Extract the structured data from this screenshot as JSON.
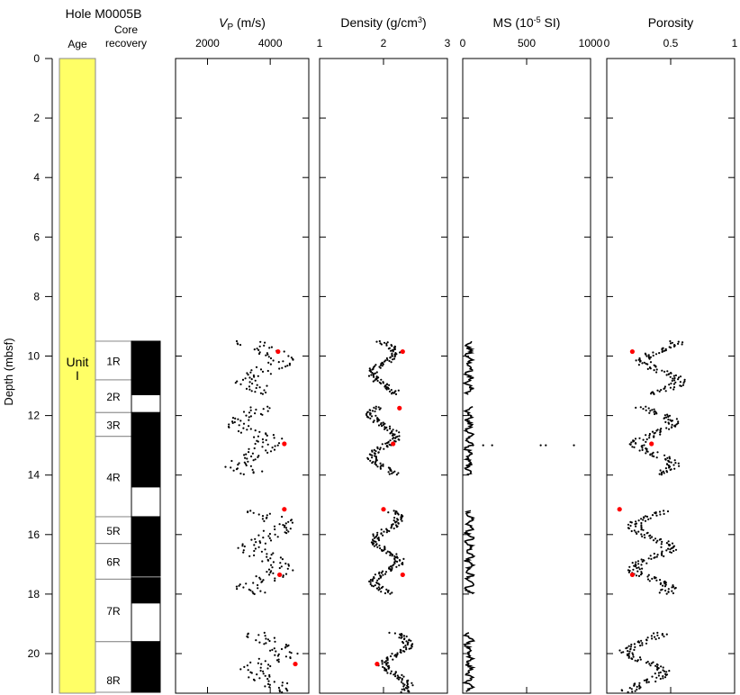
{
  "chart_data": {
    "type": "scatter",
    "title": "Hole M0005B",
    "ylabel": "Depth (mbsf)",
    "ylim": [
      0,
      21.3
    ],
    "depth_ticks": [
      0,
      2,
      4,
      6,
      8,
      10,
      12,
      14,
      16,
      18,
      20
    ],
    "columns": {
      "age": {
        "label": "Age",
        "unit_label": "Unit\nI",
        "unit_lines": [
          "Unit",
          "I"
        ],
        "top": 0,
        "bottom": 21.3,
        "color": "#ffff66"
      },
      "core_recovery": {
        "label_lines": [
          "Core",
          "recovery"
        ],
        "cores": [
          {
            "name": "1R",
            "top": 9.5,
            "bottom": 10.8,
            "recovered_top": 9.5,
            "recovered_bottom": 11.3
          },
          {
            "name": "2R",
            "top": 10.8,
            "bottom": 11.9,
            "recovered_top": 10.8,
            "recovered_bottom": 11.3
          },
          {
            "name": "3R",
            "top": 11.9,
            "bottom": 12.7,
            "recovered_top": 11.9,
            "recovered_bottom": 14.4
          },
          {
            "name": "4R",
            "top": 12.7,
            "bottom": 15.4,
            "recovered_top": 12.7,
            "recovered_bottom": 14.4
          },
          {
            "name": "5R",
            "top": 15.4,
            "bottom": 16.3,
            "recovered_top": 15.4,
            "recovered_bottom": 17.4
          },
          {
            "name": "6R",
            "top": 16.3,
            "bottom": 17.5,
            "recovered_top": 16.3,
            "recovered_bottom": 17.4
          },
          {
            "name": "7R",
            "top": 17.5,
            "bottom": 19.6,
            "recovered_top": 17.5,
            "recovered_bottom": 18.3
          },
          {
            "name": "8R",
            "top": 19.6,
            "bottom": 21.3,
            "recovered_top": 19.6,
            "recovered_bottom": 21.3
          }
        ]
      }
    },
    "panels": [
      {
        "id": "vp",
        "title_main": "V",
        "title_sub": "P",
        "title_rest": " (m/s)",
        "xlim": [
          980,
          5230
        ],
        "ticks": [
          2000,
          4000
        ],
        "tick_labels": [
          "2000",
          "4000"
        ],
        "style": "points",
        "intervals": [
          [
            9.5,
            11.3
          ],
          [
            11.7,
            14.0
          ],
          [
            15.2,
            18.0
          ],
          [
            19.3,
            21.3
          ]
        ],
        "centers": [
          3800,
          3500,
          3900,
          3950
        ],
        "spread": 900,
        "discrete_points": [
          {
            "x": 4250,
            "depth": 9.85
          },
          {
            "x": 4450,
            "depth": 12.95
          },
          {
            "x": 4450,
            "depth": 15.15
          },
          {
            "x": 4300,
            "depth": 17.35
          },
          {
            "x": 4800,
            "depth": 20.35
          }
        ]
      },
      {
        "id": "density",
        "title_main": "Density (g/cm",
        "title_sup": "3",
        "title_rest": ")",
        "xlim": [
          1,
          3
        ],
        "ticks": [
          1,
          2,
          3
        ],
        "tick_labels": [
          "1",
          "2",
          "3"
        ],
        "style": "points",
        "intervals": [
          [
            9.5,
            11.3
          ],
          [
            11.7,
            14.0
          ],
          [
            15.2,
            18.0
          ],
          [
            19.3,
            21.3
          ]
        ],
        "centers": [
          2.0,
          2.0,
          2.05,
          2.2
        ],
        "spread": 0.35,
        "discrete_points": [
          {
            "x": 2.3,
            "depth": 9.85
          },
          {
            "x": 2.25,
            "depth": 11.75
          },
          {
            "x": 2.15,
            "depth": 12.95
          },
          {
            "x": 2.0,
            "depth": 15.15
          },
          {
            "x": 2.3,
            "depth": 17.35
          },
          {
            "x": 1.9,
            "depth": 20.35
          }
        ]
      },
      {
        "id": "ms",
        "title_main": "MS (10",
        "title_sup": "-5",
        "title_rest": " SI)",
        "xlim": [
          0,
          1000
        ],
        "ticks": [
          0,
          500,
          1000
        ],
        "tick_labels": [
          "0",
          "500",
          "1000"
        ],
        "style": "line",
        "intervals": [
          [
            9.5,
            11.3
          ],
          [
            11.7,
            14.0
          ],
          [
            15.2,
            18.0
          ],
          [
            19.3,
            21.3
          ]
        ],
        "centers": [
          50,
          50,
          50,
          50
        ],
        "spread": 40,
        "outliers": [
          {
            "x": 80,
            "depth": 13.0
          },
          {
            "x": 160,
            "depth": 13.0
          },
          {
            "x": 230,
            "depth": 13.0
          },
          {
            "x": 610,
            "depth": 13.0
          },
          {
            "x": 650,
            "depth": 13.0
          },
          {
            "x": 870,
            "depth": 13.0
          }
        ],
        "discrete_points": []
      },
      {
        "id": "porosity",
        "title_main": "Porosity",
        "xlim": [
          0,
          1
        ],
        "ticks": [
          0,
          0.5,
          1
        ],
        "tick_labels": [
          "0",
          "0.5",
          "1"
        ],
        "style": "points",
        "intervals": [
          [
            9.5,
            11.3
          ],
          [
            11.7,
            14.0
          ],
          [
            15.2,
            18.0
          ],
          [
            19.3,
            21.3
          ]
        ],
        "centers": [
          0.42,
          0.38,
          0.35,
          0.3
        ],
        "spread": 0.25,
        "discrete_points": [
          {
            "x": 0.2,
            "depth": 9.85
          },
          {
            "x": 0.35,
            "depth": 12.95
          },
          {
            "x": 0.1,
            "depth": 15.15
          },
          {
            "x": 0.2,
            "depth": 17.35
          }
        ]
      }
    ],
    "colors": {
      "points": "#000000",
      "discrete": "#ff0000",
      "age_fill": "#ffff66",
      "recovered": "#000000"
    }
  }
}
